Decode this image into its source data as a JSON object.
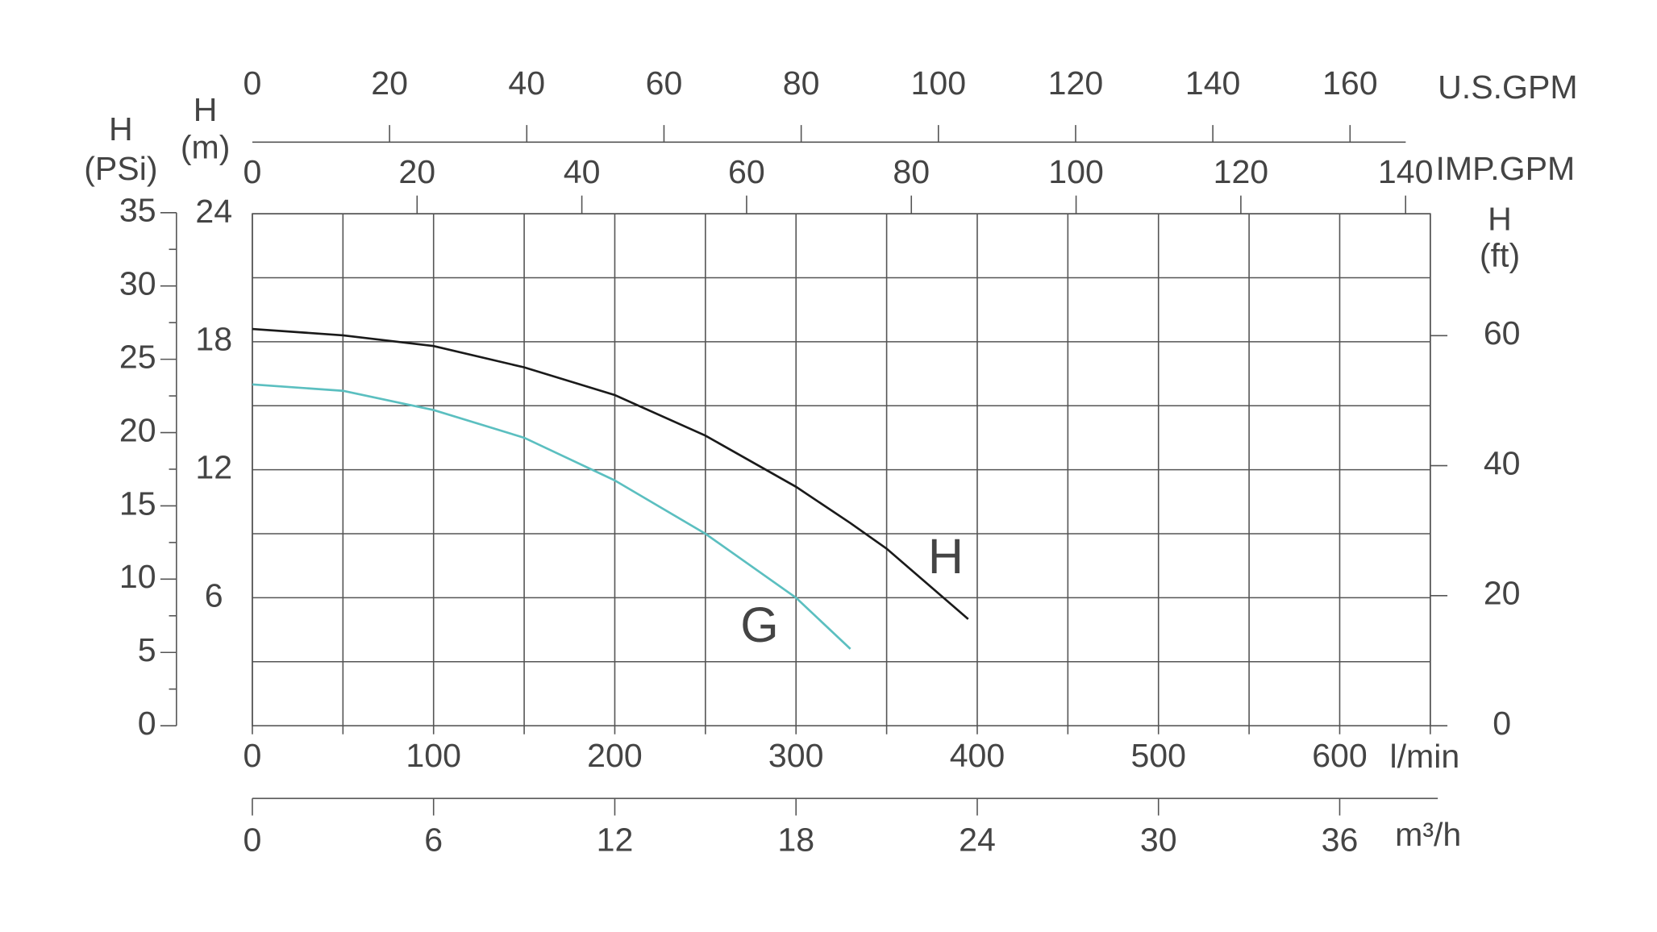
{
  "chart_data": {
    "type": "line",
    "x": [
      0,
      50,
      100,
      150,
      200,
      250,
      300,
      330,
      350,
      395
    ],
    "series": [
      {
        "name": "H",
        "color": "#1a1a1a",
        "values": [
          18.6,
          18.3,
          17.8,
          16.8,
          15.5,
          13.6,
          11.2,
          9.5,
          8.3,
          5.0
        ]
      },
      {
        "name": "G",
        "color": "#5bbfc0",
        "values": [
          16.0,
          15.7,
          14.8,
          13.5,
          11.5,
          9.0,
          6.0,
          3.6,
          null,
          null
        ]
      }
    ],
    "xlabel": "l/min",
    "xlim": [
      0,
      650
    ],
    "xticks": [
      0,
      100,
      200,
      300,
      400,
      500,
      600
    ],
    "xminor": [
      50,
      150,
      250,
      350,
      450,
      550,
      650
    ],
    "ylabel": [
      "H",
      "(m)"
    ],
    "ylim": [
      0,
      24
    ],
    "yticks": [
      6,
      12,
      18,
      24
    ],
    "yminor": [
      3,
      9,
      15,
      21
    ],
    "grid": true,
    "y2label": [
      "H",
      "(ft)"
    ],
    "y2lim": [
      0,
      78.74
    ],
    "y2ticks": [
      0,
      20,
      40,
      60
    ],
    "psi_axis": {
      "label": [
        "H",
        "(PSi)"
      ],
      "lim": [
        0,
        35
      ],
      "ticks": [
        0,
        5,
        10,
        15,
        20,
        25,
        30,
        35
      ],
      "minor": [
        2.5,
        7.5,
        12.5,
        17.5,
        22.5,
        27.5,
        32.5
      ]
    },
    "top_axes": [
      {
        "label": "U.S.GPM",
        "lim": [
          0,
          171.7
        ],
        "ticks": [
          0,
          20,
          40,
          60,
          80,
          100,
          120,
          140,
          160
        ]
      },
      {
        "label": "IMP.GPM",
        "lim": [
          0,
          143
        ],
        "ticks": [
          0,
          20,
          40,
          60,
          80,
          100,
          120,
          140
        ]
      }
    ],
    "bottom_axis": {
      "label": "m³/h",
      "lim": [
        0,
        39
      ],
      "ticks": [
        0,
        6,
        12,
        18,
        24,
        30,
        36
      ]
    }
  }
}
